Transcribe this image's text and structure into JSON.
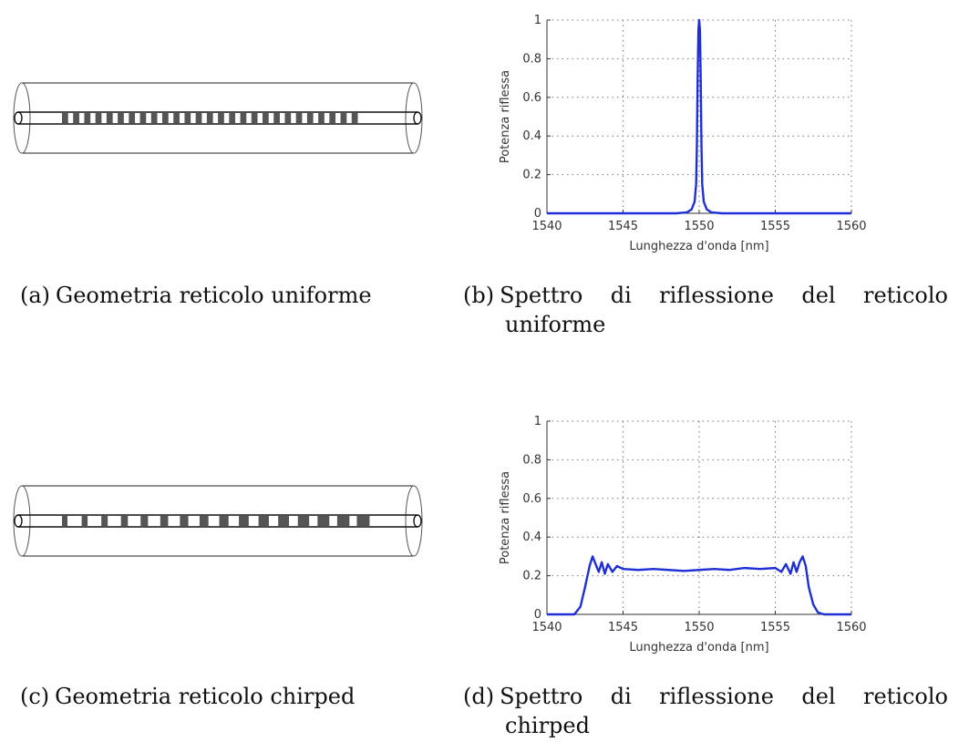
{
  "captions": {
    "a": {
      "tag": "(a)",
      "text": "Geometria reticolo uniforme"
    },
    "b": {
      "tag": "(b)",
      "line1": "Spettro di riflessione del reticolo",
      "line2": "uniforme"
    },
    "c": {
      "tag": "(c)",
      "text": "Geometria reticolo chirped"
    },
    "d": {
      "tag": "(d)",
      "line1": "Spettro di riflessione del reticolo",
      "line2": "chirped"
    }
  },
  "geometry": {
    "uniform": {
      "segments": 27,
      "fill": "uniform"
    },
    "chirped": {
      "segments": 16,
      "fill": "chirped"
    }
  },
  "chart_data": [
    {
      "id": "b",
      "type": "line",
      "xlabel": "Lunghezza d'onda [nm]",
      "ylabel": "Potenza riflessa",
      "xlim": [
        1540,
        1560
      ],
      "ylim": [
        0,
        1
      ],
      "xticks": [
        "1540",
        "1545",
        "1550",
        "1555",
        "1560"
      ],
      "yticks": [
        "0",
        "0.2",
        "0.4",
        "0.6",
        "0.8",
        "1"
      ],
      "grid": true,
      "color": "#1f2fd6",
      "series": [
        {
          "x": [
            1540,
            1548.5,
            1549.2,
            1549.5,
            1549.7,
            1549.8,
            1549.85,
            1549.9,
            1549.95,
            1550.0,
            1550.05,
            1550.1,
            1550.15,
            1550.2,
            1550.3,
            1550.5,
            1550.8,
            1551.5,
            1560
          ],
          "y": [
            0,
            0,
            0.005,
            0.02,
            0.06,
            0.15,
            0.35,
            0.7,
            0.95,
            1.0,
            0.95,
            0.7,
            0.35,
            0.15,
            0.06,
            0.02,
            0.005,
            0,
            0
          ]
        }
      ]
    },
    {
      "id": "d",
      "type": "line",
      "xlabel": "Lunghezza d'onda [nm]",
      "ylabel": "Potenza riflessa",
      "xlim": [
        1540,
        1560
      ],
      "ylim": [
        0,
        1
      ],
      "xticks": [
        "1540",
        "1545",
        "1550",
        "1555",
        "1560"
      ],
      "yticks": [
        "0",
        "0.2",
        "0.4",
        "0.6",
        "0.8",
        "1"
      ],
      "grid": true,
      "color": "#1f2fd6",
      "series": [
        {
          "x": [
            1540,
            1541.8,
            1542.2,
            1542.5,
            1542.8,
            1543.0,
            1543.2,
            1543.4,
            1543.6,
            1543.8,
            1544.0,
            1544.3,
            1544.6,
            1545.0,
            1546.0,
            1547.0,
            1548.0,
            1549.0,
            1550.0,
            1551.0,
            1552.0,
            1553.0,
            1554.0,
            1555.0,
            1555.4,
            1555.7,
            1556.0,
            1556.2,
            1556.4,
            1556.6,
            1556.8,
            1557.0,
            1557.2,
            1557.5,
            1557.8,
            1558.2,
            1560
          ],
          "y": [
            0,
            0,
            0.04,
            0.14,
            0.25,
            0.3,
            0.26,
            0.22,
            0.27,
            0.21,
            0.26,
            0.22,
            0.25,
            0.235,
            0.23,
            0.235,
            0.23,
            0.225,
            0.23,
            0.235,
            0.23,
            0.24,
            0.235,
            0.24,
            0.22,
            0.26,
            0.21,
            0.27,
            0.22,
            0.27,
            0.3,
            0.25,
            0.14,
            0.05,
            0.01,
            0,
            0
          ]
        }
      ]
    }
  ]
}
